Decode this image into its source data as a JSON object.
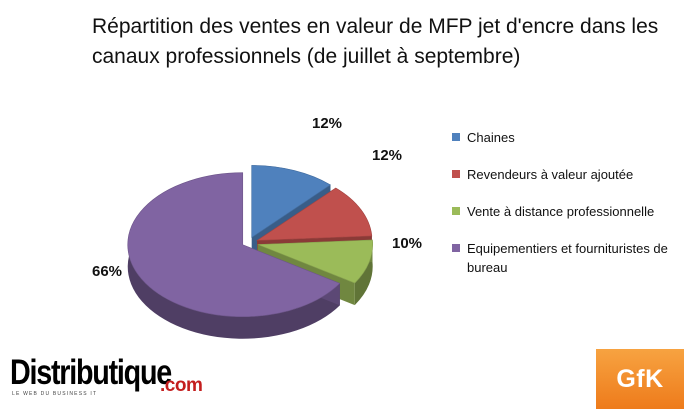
{
  "chart_data": {
    "type": "pie",
    "title": "Répartition des ventes en valeur de MFP jet d'encre dans les canaux professionnels (de juillet à septembre)",
    "slices": [
      {
        "name": "Chaines",
        "value": 12,
        "label": "12%",
        "color": "#4f81bd"
      },
      {
        "name": "Revendeurs à valeur ajoutée",
        "value": 12,
        "label": "12%",
        "color": "#c0504d"
      },
      {
        "name": "Vente à distance professionnelle",
        "value": 10,
        "label": "10%",
        "color": "#9bbb59"
      },
      {
        "name": "Equipementiers et fournituristes de bureau",
        "value": 66,
        "label": "66%",
        "color": "#8064a2"
      }
    ],
    "legend_position": "right",
    "style": "3d-exploded"
  },
  "logos": {
    "distributique": {
      "main": "Distributique",
      "suffix": ".com",
      "tagline": "LE WEB DU BUSINESS IT"
    },
    "gfk": {
      "text": "GfK"
    }
  }
}
